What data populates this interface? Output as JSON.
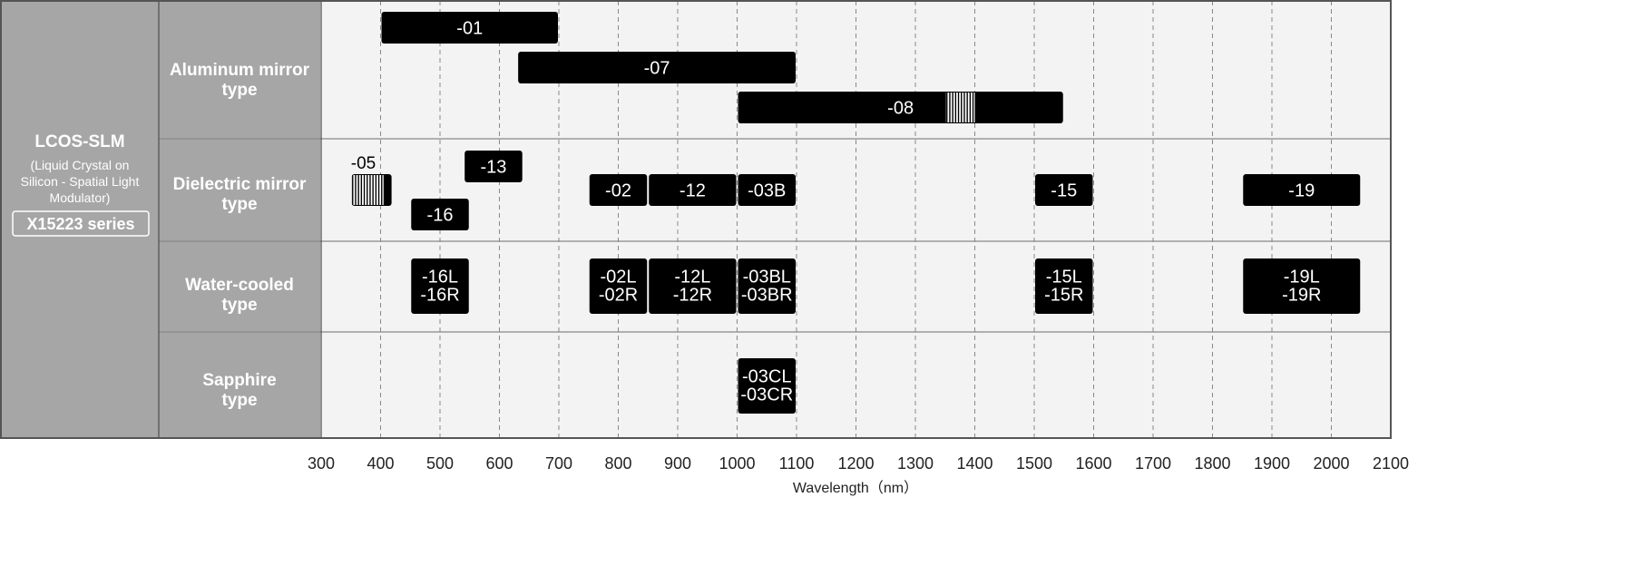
{
  "chart_data": {
    "type": "range-bar",
    "title": "",
    "xlabel": "Wavelength（nm）",
    "xlim": [
      300,
      2100
    ],
    "xticks": [
      300,
      400,
      500,
      600,
      700,
      800,
      900,
      1000,
      1100,
      1200,
      1300,
      1400,
      1500,
      1600,
      1700,
      1800,
      1900,
      2000,
      2100
    ],
    "grid": "vertical dashed",
    "product": {
      "title": "LCOS-SLM",
      "subtitle_lines": [
        "(Liquid Crystal on",
        "Silicon - Spatial Light",
        "Modulator)"
      ],
      "series": "X15223 series"
    },
    "categories": [
      {
        "label_lines": [
          "Aluminum mirror",
          "type"
        ],
        "bars": [
          {
            "label": [
              "-01"
            ],
            "start": 400,
            "end": 700
          },
          {
            "label": [
              "-07"
            ],
            "start": 630,
            "end": 1100
          },
          {
            "label": [
              "-08"
            ],
            "start": 1000,
            "end": 1550,
            "hatch": [
              1350,
              1400
            ]
          }
        ]
      },
      {
        "label_lines": [
          "Dielectric mirror",
          "type"
        ],
        "bars": [
          {
            "label": [
              "-05"
            ],
            "start": 350,
            "end": 420,
            "hatch": [
              350,
              405
            ],
            "label_outside": true
          },
          {
            "label": [
              "-13"
            ],
            "start": 540,
            "end": 640
          },
          {
            "label": [
              "-16"
            ],
            "start": 450,
            "end": 550
          },
          {
            "label": [
              "-02"
            ],
            "start": 750,
            "end": 850
          },
          {
            "label": [
              "-12"
            ],
            "start": 850,
            "end": 1000
          },
          {
            "label": [
              "-03B"
            ],
            "start": 1000,
            "end": 1100
          },
          {
            "label": [
              "-15"
            ],
            "start": 1500,
            "end": 1600
          },
          {
            "label": [
              "-19"
            ],
            "start": 1850,
            "end": 2050
          }
        ]
      },
      {
        "label_lines": [
          "Water-cooled",
          "type"
        ],
        "bars": [
          {
            "label": [
              "-16L",
              "-16R"
            ],
            "start": 450,
            "end": 550
          },
          {
            "label": [
              "-02L",
              "-02R"
            ],
            "start": 750,
            "end": 850
          },
          {
            "label": [
              "-12L",
              "-12R"
            ],
            "start": 850,
            "end": 1000
          },
          {
            "label": [
              "-03BL",
              "-03BR"
            ],
            "start": 1000,
            "end": 1100
          },
          {
            "label": [
              "-15L",
              "-15R"
            ],
            "start": 1500,
            "end": 1600
          },
          {
            "label": [
              "-19L",
              "-19R"
            ],
            "start": 1850,
            "end": 2050
          }
        ]
      },
      {
        "label_lines": [
          "Sapphire",
          "type"
        ],
        "bars": [
          {
            "label": [
              "-03CL",
              "-03CR"
            ],
            "start": 1000,
            "end": 1100
          }
        ]
      }
    ]
  },
  "colors": {
    "left_panel": "#a6a6a6",
    "plot_bg": "#f3f3f3",
    "bar": "#000000",
    "border": "#555555",
    "divider": "#888888",
    "grid": "#888888",
    "label_text": "#ffffff"
  }
}
